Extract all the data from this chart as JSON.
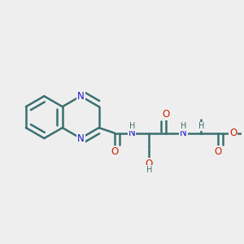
{
  "background_color": "#eeeeee",
  "atom_color_N": "#1a1acc",
  "atom_color_O": "#cc2200",
  "atom_color_teal": "#3a7070",
  "bond_color": "#3a7070",
  "bond_width": 1.8,
  "figsize": [
    3.0,
    3.0
  ],
  "dpi": 100,
  "xlim": [
    0.0,
    1.0
  ],
  "ylim": [
    0.0,
    1.0
  ]
}
